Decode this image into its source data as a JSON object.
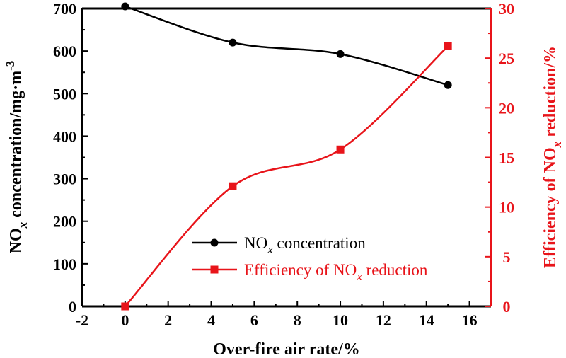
{
  "chart_data": {
    "type": "line",
    "x": [
      0,
      5,
      10,
      15
    ],
    "xlabel": "Over-fire air rate/%",
    "xlim": [
      -2,
      17
    ],
    "xticks": [
      -2,
      0,
      2,
      4,
      6,
      8,
      10,
      12,
      14,
      16
    ],
    "ylabel_left": {
      "prefix": "NO",
      "sub": "x",
      "main": " concentration/mg·m",
      "sup": "-3"
    },
    "ylim_left": [
      0,
      700
    ],
    "yticks_left": [
      0,
      100,
      200,
      300,
      400,
      500,
      600,
      700
    ],
    "ylabel_right": {
      "prefix": "Efficiency of NO",
      "sub": "x",
      "main": " reduction/%"
    },
    "ylim_right": [
      0,
      30
    ],
    "yticks_right": [
      0,
      5,
      10,
      15,
      20,
      25,
      30
    ],
    "series": [
      {
        "name": "NOx concentration",
        "legend": {
          "prefix": "NO",
          "sub": "x",
          "suffix": " concentration"
        },
        "axis": "left",
        "color": "#000000",
        "marker": "circle",
        "values": [
          705,
          620,
          593,
          520
        ]
      },
      {
        "name": "Efficiency of NOx reduction",
        "legend": {
          "prefix": "Efficiency of NO",
          "sub": "x",
          "suffix": " reduction"
        },
        "axis": "right",
        "color": "#e8141a",
        "marker": "square",
        "values": [
          0,
          12.1,
          15.8,
          26.2
        ]
      }
    ],
    "legend_position": "lower-center"
  }
}
